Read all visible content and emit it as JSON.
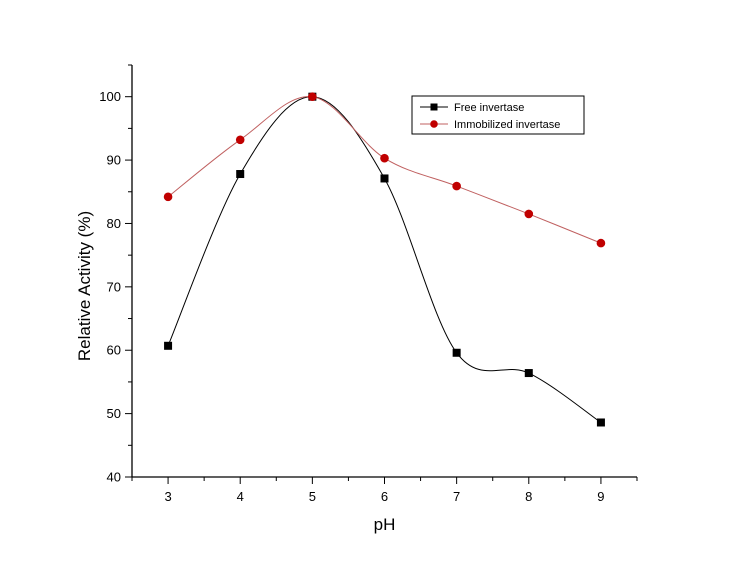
{
  "chart_data": {
    "type": "line",
    "title": "",
    "xlabel": "pH",
    "ylabel": "Relative Activity (%)",
    "x": [
      3,
      4,
      5,
      6,
      7,
      8,
      9
    ],
    "xlim": [
      2.5,
      9.5
    ],
    "ylim": [
      40,
      105
    ],
    "xticks": [
      3,
      4,
      5,
      6,
      7,
      8,
      9
    ],
    "yticks": [
      40,
      50,
      60,
      70,
      80,
      90,
      100
    ],
    "grid": false,
    "smooth": true,
    "legend_position": "top-right",
    "series": [
      {
        "name": "Free invertase",
        "marker": "square",
        "marker_color": "#000000",
        "line_color": "#000000",
        "values": [
          60.7,
          87.8,
          100.0,
          87.1,
          59.6,
          56.4,
          48.6
        ]
      },
      {
        "name": "Immobilized invertase",
        "marker": "circle",
        "marker_color": "#c00000",
        "line_color": "#c06060",
        "values": [
          84.2,
          93.2,
          100.0,
          90.3,
          85.9,
          81.5,
          76.9
        ]
      }
    ]
  }
}
